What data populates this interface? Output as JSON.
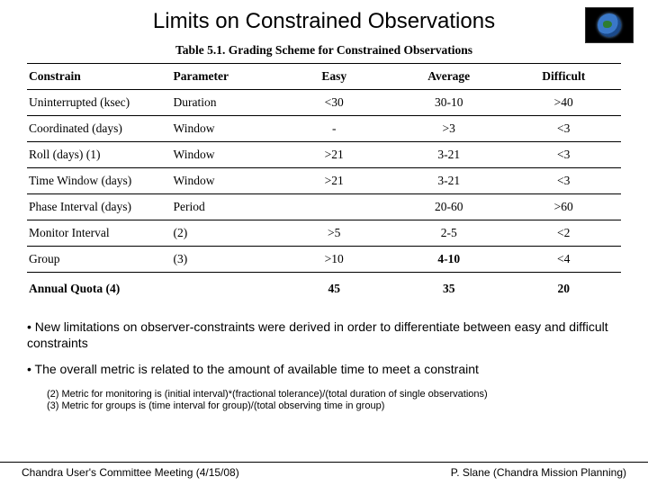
{
  "title": "Limits on Constrained Observations",
  "logo": {
    "name": "earth-logo"
  },
  "table": {
    "caption": "Table 5.1.    Grading Scheme for Constrained Observations",
    "columns": [
      "Constrain",
      "Parameter",
      "Easy",
      "Average",
      "Difficult"
    ],
    "rows": [
      {
        "constrain": "Uninterrupted (ksec)",
        "parameter": "Duration",
        "easy": "<30",
        "average": "30-10",
        "difficult": ">40"
      },
      {
        "constrain": "Coordinated (days)",
        "parameter": "Window",
        "easy": "-",
        "average": ">3",
        "difficult": "<3"
      },
      {
        "constrain": "Roll (days) (1)",
        "parameter": "Window",
        "easy": ">21",
        "average": "3-21",
        "difficult": "<3"
      },
      {
        "constrain": "Time Window (days)",
        "parameter": "Window",
        "easy": ">21",
        "average": "3-21",
        "difficult": "<3"
      },
      {
        "constrain": "Phase Interval (days)",
        "parameter": "Period",
        "easy": "",
        "average": "20-60",
        "difficult": ">60"
      },
      {
        "constrain": "Monitor Interval",
        "parameter": "(2)",
        "easy": ">5",
        "average": "2-5",
        "difficult": "<2"
      },
      {
        "constrain": "Group",
        "parameter": "(3)",
        "easy": ">10",
        "average": "4-10",
        "difficult": "<4"
      }
    ],
    "totals": {
      "label": "Annual Quota (4)",
      "easy": "45",
      "average": "35",
      "difficult": "20"
    },
    "styling": {
      "font_family": "Times New Roman",
      "caption_fontsize_pt": 11,
      "body_fontsize_pt": 11,
      "header_weight": "bold",
      "rule_color": "#000000",
      "text_color": "#000000",
      "background_color": "#ffffff",
      "col_align": [
        "left",
        "left",
        "center",
        "center",
        "center"
      ],
      "bold_avg_rows": [
        "Group"
      ]
    }
  },
  "bullets": {
    "items": [
      "• New limitations on observer-constraints were derived in order to differentiate between easy and difficult constraints",
      "• The overall metric is related to the amount of available time to meet a constraint"
    ],
    "fontsize_pt": 11
  },
  "footnotes": {
    "items": [
      "(2) Metric for monitoring is (initial interval)*(fractional tolerance)/(total duration of single observations)",
      "(3) Metric for groups is (time interval for group)/(total observing time in group)"
    ],
    "fontsize_pt": 8
  },
  "footer": {
    "left": "Chandra User's Committee Meeting (4/15/08)",
    "right": "P. Slane (Chandra Mission Planning)",
    "fontsize_pt": 9
  },
  "colors": {
    "background": "#ffffff",
    "text": "#000000",
    "rule": "#000000"
  }
}
